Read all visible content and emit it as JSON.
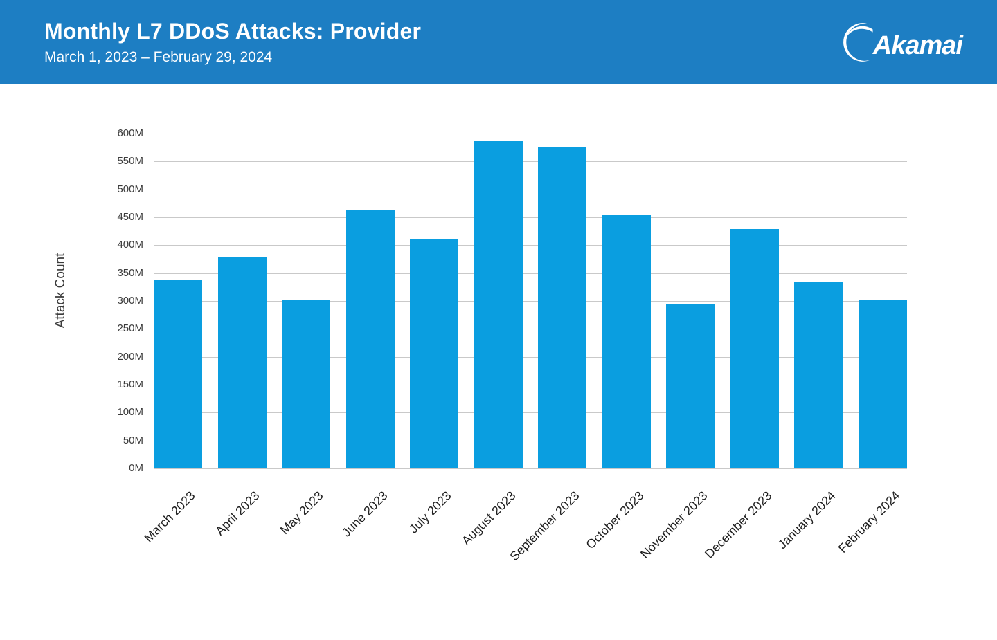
{
  "header": {
    "title": "Monthly L7 DDoS Attacks: Provider",
    "subtitle": "March 1, 2023 – February 29, 2024",
    "logo_text": "Akamai",
    "background_color": "#1D7EC3",
    "text_color": "#FFFFFF"
  },
  "chart_data": {
    "type": "bar",
    "title": "Monthly L7 DDoS Attacks: Provider",
    "subtitle": "March 1, 2023 – February 29, 2024",
    "categories": [
      "March 2023",
      "April 2023",
      "May 2023",
      "June 2023",
      "July 2023",
      "August 2023",
      "September 2023",
      "October 2023",
      "November 2023",
      "December 2023",
      "January 2024",
      "February 2024"
    ],
    "values": [
      338,
      378,
      301,
      463,
      411,
      586,
      575,
      454,
      295,
      429,
      334,
      303
    ],
    "unit": "M",
    "value_scale": "millions",
    "xlabel": "",
    "ylabel": "Attack Count",
    "ylim": [
      0,
      600
    ],
    "ytick_step": 50,
    "ytick_labels": [
      "0M",
      "50M",
      "100M",
      "150M",
      "200M",
      "250M",
      "300M",
      "350M",
      "400M",
      "450M",
      "500M",
      "550M",
      "600M"
    ],
    "bar_color": "#0A9EE0",
    "gridline_color": "#C9C9C9",
    "grid": true,
    "legend": false,
    "x_label_rotation_deg": 45
  }
}
